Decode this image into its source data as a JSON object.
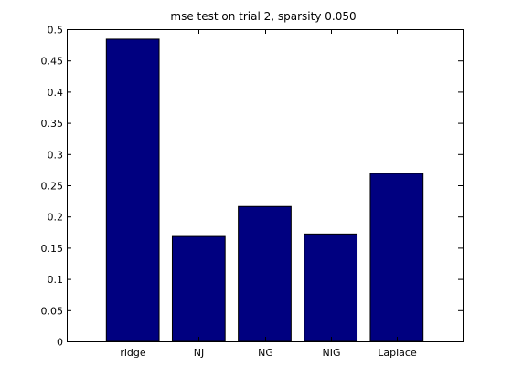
{
  "chart_data": {
    "type": "bar",
    "title": "mse test on trial 2, sparsity 0.050",
    "xlabel": "",
    "ylabel": "",
    "categories": [
      "ridge",
      "NJ",
      "NG",
      "NIG",
      "Laplace"
    ],
    "values": [
      0.484,
      0.168,
      0.216,
      0.172,
      0.269
    ],
    "ylim": [
      0,
      0.5
    ],
    "yticks": [
      "0",
      "0.05",
      "0.1",
      "0.15",
      "0.2",
      "0.25",
      "0.3",
      "0.35",
      "0.4",
      "0.45",
      "0.5"
    ],
    "grid": false,
    "legend": "none",
    "bar_color": "#000080"
  }
}
